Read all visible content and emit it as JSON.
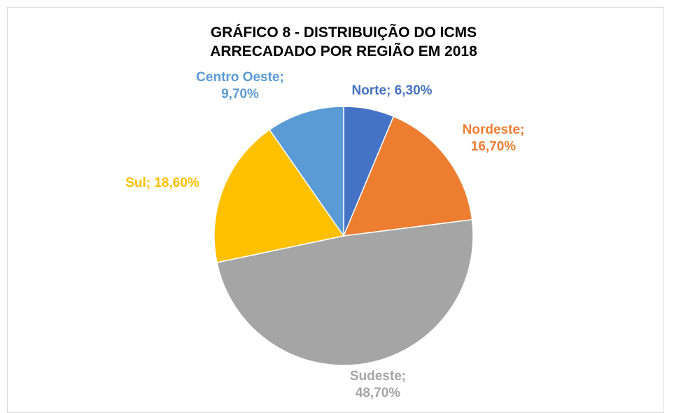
{
  "chart_data": {
    "type": "pie",
    "title": "GRÁFICO 8 - DISTRIBUIÇÃO DO ICMS ARRECADADO POR REGIÃO EM 2018",
    "values": [
      6.3,
      16.7,
      48.7,
      18.6,
      9.7
    ],
    "value_labels": [
      "Norte; 6,30%",
      "Nordeste; 16,70%",
      "Sudeste; 48,70%",
      "Sul; 18,60%",
      "Centro Oeste; 9,70%"
    ],
    "colors": [
      "#4472c4",
      "#ed7d31",
      "#a5a5a5",
      "#ffc000",
      "#5b9bd5"
    ]
  }
}
